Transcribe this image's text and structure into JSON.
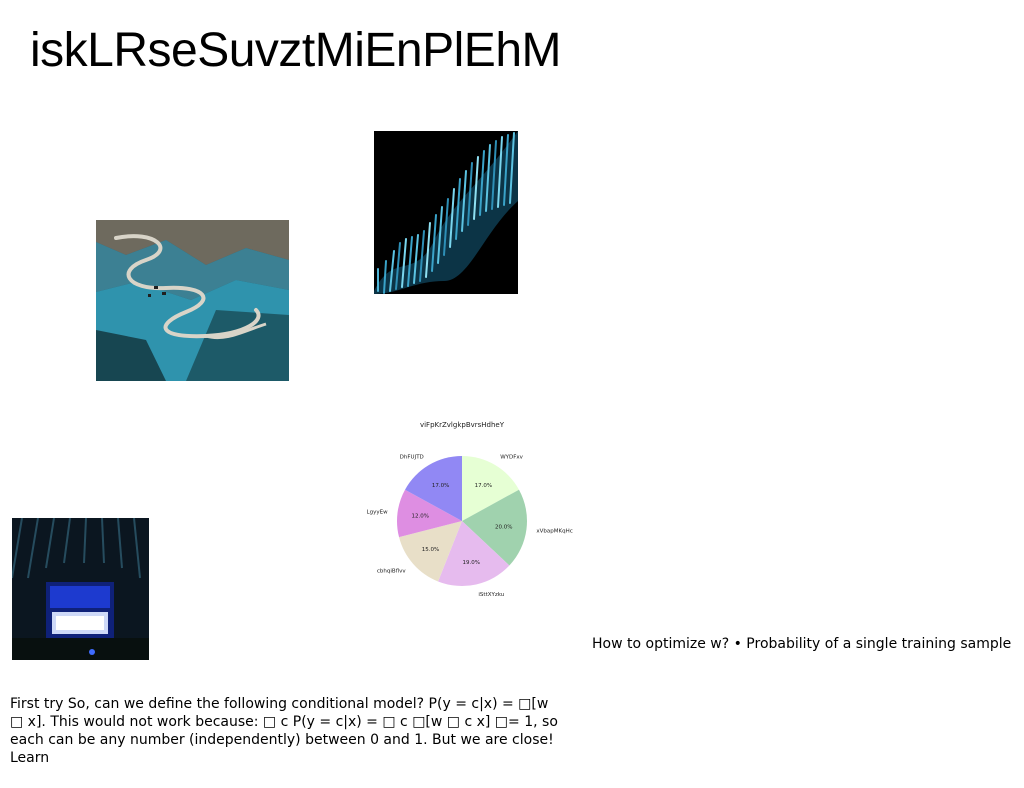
{
  "page": {
    "title": "iskLRseSuvztMiEnPlEhM",
    "side_text": "How to optimize w? • Probability of a single training sample",
    "body_text": "First try So, can we define the following conditional model? P(y = c|x) = □[w □ x]. This would not work because: □ c P(y = c|x) = □ c □[w □ c x] □= 1, so each can be any number (independently) between 0 and 1. But we are close! Learn"
  },
  "images": {
    "road_photo": {
      "icon": "mountain-road-photo"
    },
    "wave_photo": {
      "icon": "abstract-wave-photo"
    },
    "neon_photo": {
      "icon": "neon-sign-photo"
    }
  },
  "chart_data": {
    "type": "pie",
    "title": "viFpKrZvlgkpBvrsHdheY",
    "slices": [
      {
        "label": "WYDFxv",
        "value": 17.0,
        "pct_label": "17.0%",
        "color": "#e6ffd4"
      },
      {
        "label": "xVbapMKqHc",
        "value": 20.0,
        "pct_label": "20.0%",
        "color": "#a0d2ae"
      },
      {
        "label": "iSttXYzku",
        "value": 19.0,
        "pct_label": "19.0%",
        "color": "#e6bbee"
      },
      {
        "label": "cbhqiBflvv",
        "value": 15.0,
        "pct_label": "15.0%",
        "color": "#e8dfc8"
      },
      {
        "label": "LgyyEw",
        "value": 12.0,
        "pct_label": "12.0%",
        "color": "#de8ee2"
      },
      {
        "label": "DhFUJTD",
        "value": 17.0,
        "pct_label": "17.0%",
        "color": "#9188f4"
      }
    ],
    "start_angle": "top",
    "direction": "clockwise",
    "legend": "none"
  }
}
